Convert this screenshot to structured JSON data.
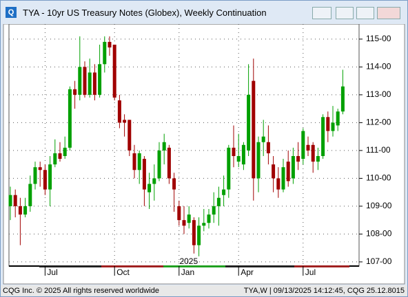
{
  "window": {
    "title": "TYA - 10yr US Treasury Notes (Globex), Weekly Continuation"
  },
  "status": {
    "left": "CQG Inc. © 2025 All rights reserved worldwide",
    "right": "TYA,W | 09/13/2025 14:12:45, CQG 25.12.8015"
  },
  "chart_data": {
    "type": "candlestick",
    "categories": [
      null,
      null,
      null,
      null,
      null,
      null,
      null,
      "Jul",
      null,
      null,
      null,
      null,
      null,
      null,
      null,
      null,
      null,
      null,
      null,
      null,
      null,
      "Oct",
      null,
      null,
      null,
      null,
      null,
      null,
      null,
      null,
      null,
      null,
      null,
      null,
      "Jan",
      null,
      null,
      null,
      null,
      null,
      null,
      null,
      null,
      null,
      null,
      null,
      "Apr",
      null,
      null,
      null,
      null,
      null,
      null,
      null,
      null,
      null,
      null,
      null,
      null,
      "Jul",
      null,
      null,
      null,
      null,
      null,
      null,
      null,
      null
    ],
    "annotation": "2025",
    "series": [
      {
        "up_color": "#00a000",
        "down_color": "#a00000",
        "open": [
          109.0,
          109.4,
          109.0,
          108.7,
          109.0,
          109.8,
          110.4,
          110.3,
          109.6,
          110.5,
          110.9,
          110.8,
          111.1,
          113.2,
          113.0,
          114.0,
          113.0,
          113.8,
          113.0,
          114.1,
          114.9,
          114.8,
          112.8,
          112.1,
          112.1,
          110.9,
          110.3,
          110.7,
          109.5,
          109.8,
          110.0,
          111.0,
          111.1,
          110.0,
          109.0,
          108.5,
          108.4,
          108.5,
          107.6,
          108.3,
          108.4,
          108.7,
          109.0,
          109.4,
          109.6,
          111.1,
          110.6,
          110.5,
          111.0,
          113.5,
          110.0,
          111.3,
          111.3,
          110.5,
          110.0,
          109.6,
          110.6,
          110.0,
          110.8,
          110.7,
          111.2,
          111.2,
          110.6,
          110.8,
          112.2,
          111.7,
          111.9,
          112.4
        ],
        "high": [
          109.7,
          109.6,
          109.3,
          109.3,
          110.1,
          110.6,
          110.6,
          110.5,
          110.8,
          111.4,
          111.3,
          111.5,
          113.3,
          113.5,
          115.1,
          114.2,
          114.3,
          114.1,
          114.8,
          115.1,
          115.1,
          114.8,
          113.0,
          112.3,
          112.1,
          111.2,
          111.0,
          110.8,
          110.2,
          110.5,
          111.3,
          111.6,
          111.2,
          110.2,
          109.2,
          109.0,
          109.0,
          108.6,
          108.6,
          108.9,
          108.9,
          109.5,
          109.7,
          110.1,
          111.2,
          111.9,
          111.6,
          111.3,
          114.1,
          114.3,
          111.5,
          112.1,
          111.9,
          110.8,
          110.4,
          110.7,
          111.0,
          111.1,
          111.3,
          111.8,
          111.5,
          111.3,
          111.1,
          112.3,
          112.4,
          112.6,
          112.5,
          113.9
        ],
        "low": [
          108.5,
          108.6,
          107.6,
          108.6,
          108.8,
          109.6,
          109.7,
          109.4,
          109.0,
          110.4,
          110.6,
          110.7,
          111.0,
          112.5,
          112.8,
          112.9,
          112.9,
          112.8,
          112.9,
          113.8,
          114.4,
          112.8,
          111.8,
          111.5,
          110.8,
          110.0,
          109.8,
          109.0,
          108.9,
          109.2,
          109.9,
          110.5,
          109.8,
          108.8,
          108.3,
          108.0,
          108.2,
          107.3,
          107.2,
          108.1,
          108.2,
          108.4,
          108.3,
          109.0,
          109.3,
          110.4,
          110.4,
          110.3,
          110.8,
          109.2,
          109.5,
          110.8,
          110.5,
          109.5,
          109.3,
          109.5,
          109.7,
          109.8,
          110.3,
          110.5,
          110.8,
          110.2,
          110.3,
          110.7,
          111.3,
          111.5,
          111.7,
          112.3
        ],
        "close": [
          109.4,
          109.0,
          108.7,
          109.0,
          109.8,
          110.4,
          110.3,
          109.6,
          110.5,
          110.9,
          110.7,
          111.1,
          113.2,
          113.0,
          114.0,
          113.0,
          113.8,
          113.0,
          114.1,
          114.9,
          114.7,
          112.9,
          112.0,
          112.0,
          111.0,
          110.3,
          110.9,
          109.6,
          109.8,
          110.0,
          111.0,
          111.3,
          110.0,
          109.6,
          108.5,
          108.3,
          108.7,
          107.6,
          108.3,
          108.4,
          108.7,
          109.0,
          109.3,
          109.6,
          111.1,
          110.8,
          110.8,
          111.2,
          113.0,
          110.0,
          111.3,
          111.5,
          110.9,
          110.0,
          109.6,
          110.4,
          109.9,
          110.8,
          110.6,
          111.7,
          111.0,
          110.6,
          110.8,
          112.2,
          111.7,
          112.0,
          112.4,
          113.3
        ]
      }
    ],
    "ylim": [
      106.85,
      115.54
    ],
    "yticks": [
      {
        "value": 107,
        "label": "107-00"
      },
      {
        "value": 108,
        "label": "108-00"
      },
      {
        "value": 109,
        "label": "109-00"
      },
      {
        "value": 110,
        "label": "110-00"
      },
      {
        "value": 111,
        "label": "111-00"
      },
      {
        "value": 112,
        "label": "112-00"
      },
      {
        "value": 113,
        "label": "113-00"
      },
      {
        "value": 114,
        "label": "114-00"
      },
      {
        "value": 115,
        "label": "115-00"
      }
    ],
    "grid": true
  }
}
